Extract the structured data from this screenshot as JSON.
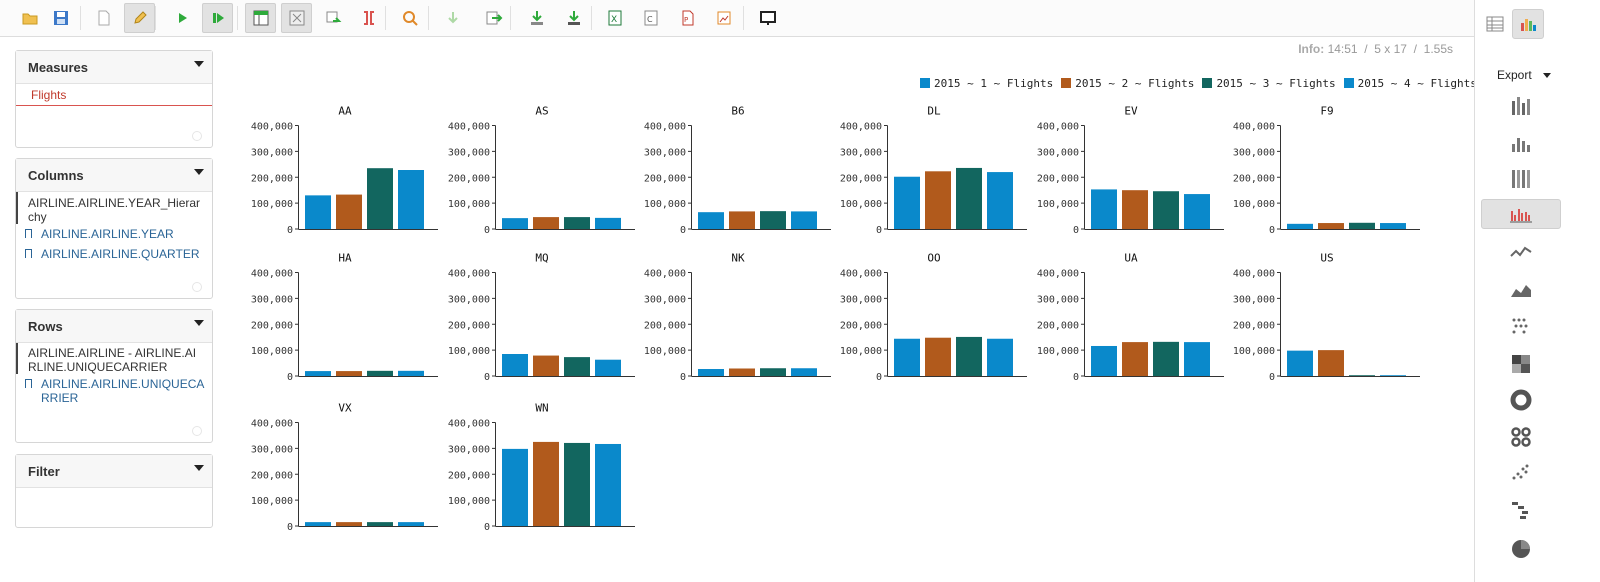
{
  "toolbar": {
    "buttons": [
      {
        "name": "open-icon",
        "x": 14
      },
      {
        "name": "save-icon",
        "x": 45
      },
      {
        "name": "new-query-icon",
        "x": 88
      },
      {
        "name": "edit-icon",
        "x": 124,
        "active": true
      },
      {
        "name": "run-icon",
        "x": 166
      },
      {
        "name": "auto-run-icon",
        "x": 202,
        "active": true
      },
      {
        "name": "toggle-fields-icon",
        "x": 245,
        "active": true
      },
      {
        "name": "hide-empty-icon",
        "x": 281,
        "active": true
      },
      {
        "name": "swap-axis-icon",
        "x": 317
      },
      {
        "name": "show-mdx-icon",
        "x": 353
      },
      {
        "name": "zoom-icon",
        "x": 394
      },
      {
        "name": "drill-down-icon",
        "x": 437
      },
      {
        "name": "drill-through-icon",
        "x": 478
      },
      {
        "name": "export-data-icon",
        "x": 521
      },
      {
        "name": "export-drill-icon",
        "x": 558
      },
      {
        "name": "export-xls-icon",
        "x": 599
      },
      {
        "name": "export-csv-icon",
        "x": 635
      },
      {
        "name": "export-pdf-icon",
        "x": 672
      },
      {
        "name": "export-png-icon",
        "x": 708
      },
      {
        "name": "present-icon",
        "x": 752
      }
    ]
  },
  "panels": {
    "measures": {
      "title": "Measures",
      "items": [
        "Flights"
      ]
    },
    "columns": {
      "title": "Columns",
      "dimension": "AIRLINE.AIRLINE.YEAR_Hierarchy",
      "levels": [
        "AIRLINE.AIRLINE.YEAR",
        "AIRLINE.AIRLINE.QUARTER"
      ]
    },
    "rows": {
      "title": "Rows",
      "dimension": "AIRLINE.AIRLINE - AIRLINE.AIRLINE.UNIQUECARRIER",
      "levels": [
        "AIRLINE.AIRLINE.UNIQUECARRIER"
      ]
    },
    "filter": {
      "title": "Filter"
    }
  },
  "info": {
    "label": "Info:",
    "time": "14:51",
    "size": "5 x 17",
    "duration": "1.55s"
  },
  "sidebar": {
    "export_label": "Export"
  },
  "colors": [
    "#0a89cb",
    "#b15a1c",
    "#12665f",
    "#0a89cb"
  ],
  "chart_data": {
    "type": "bar",
    "series": [
      {
        "name": "2015 ~ 1 ~ Flights"
      },
      {
        "name": "2015 ~ 2 ~ Flights"
      },
      {
        "name": "2015 ~ 3 ~ Flights"
      },
      {
        "name": "2015 ~ 4 ~ Flights"
      }
    ],
    "ylim": [
      0,
      400000
    ],
    "yticks": [
      "0",
      "100,000",
      "200,000",
      "300,000",
      "400,000"
    ],
    "facets": [
      {
        "title": "AA",
        "values": [
          130000,
          133000,
          235000,
          228000
        ]
      },
      {
        "title": "AS",
        "values": [
          42000,
          46000,
          46000,
          43000
        ]
      },
      {
        "title": "B6",
        "values": [
          65000,
          68000,
          69000,
          68000
        ]
      },
      {
        "title": "DL",
        "values": [
          202000,
          223000,
          236000,
          220000
        ]
      },
      {
        "title": "EV",
        "values": [
          153000,
          150000,
          146000,
          135000
        ]
      },
      {
        "title": "F9",
        "values": [
          20000,
          23000,
          24000,
          23000
        ]
      },
      {
        "title": "HA",
        "values": [
          19000,
          19000,
          20000,
          20000
        ]
      },
      {
        "title": "MQ",
        "values": [
          85000,
          79000,
          73000,
          63000
        ]
      },
      {
        "title": "NK",
        "values": [
          27000,
          29000,
          30000,
          30000
        ]
      },
      {
        "title": "OO",
        "values": [
          144000,
          148000,
          151000,
          144000
        ]
      },
      {
        "title": "UA",
        "values": [
          116000,
          131000,
          132000,
          131000
        ]
      },
      {
        "title": "US",
        "values": [
          98000,
          100000,
          3000,
          3000
        ]
      },
      {
        "title": "VX",
        "values": [
          15000,
          15000,
          15000,
          15000
        ]
      },
      {
        "title": "WN",
        "values": [
          298000,
          325000,
          321000,
          317000
        ]
      }
    ]
  }
}
